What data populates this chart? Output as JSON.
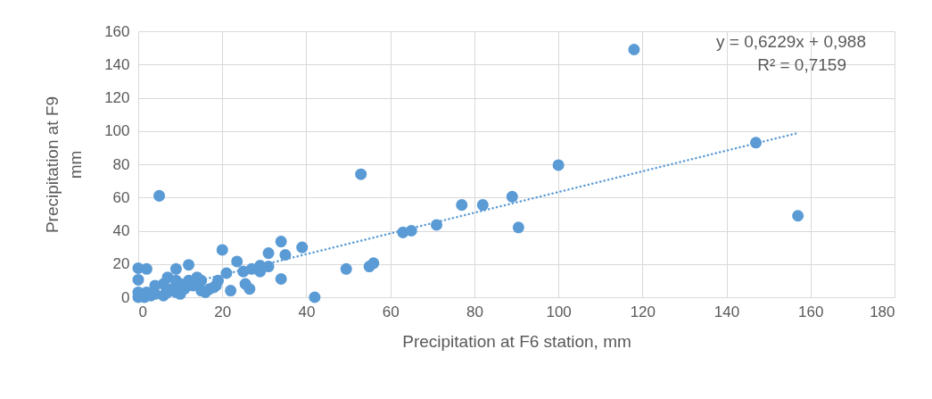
{
  "chart_data": {
    "type": "scatter",
    "xlabel": "Precipitation at F6 station, mm",
    "ylabel": "Precipitation at F9\nmm",
    "xlim": [
      0,
      180
    ],
    "xticks": [
      0,
      20,
      40,
      60,
      80,
      100,
      120,
      140,
      160,
      180
    ],
    "ylim": [
      0,
      160
    ],
    "yticks": [
      0,
      20,
      40,
      60,
      80,
      100,
      120,
      140,
      160
    ],
    "grid": true,
    "annotations": [
      "y = 0,6229x + 0,988",
      "R² = 0,7159"
    ],
    "series": [
      {
        "type": "scatter",
        "color": "#5b9bd5",
        "marker": "circle",
        "x": [
          118,
          147,
          157,
          100,
          89,
          90.5,
          82,
          77,
          71,
          65,
          63,
          56,
          55,
          53,
          49.5,
          42,
          39,
          35,
          34,
          34,
          31,
          31,
          29,
          29,
          27,
          26.5,
          25.5,
          25,
          23.5,
          22,
          21,
          20,
          19,
          18.5,
          17,
          16,
          15,
          14,
          13,
          12,
          11,
          10,
          9,
          9,
          8,
          7,
          6,
          5,
          4,
          3,
          2,
          2,
          0,
          0,
          0,
          0,
          1.5,
          4,
          6,
          7,
          9,
          10,
          12,
          15,
          18
        ],
        "values": [
          149,
          93,
          49,
          79.5,
          60.5,
          42,
          55.5,
          55.5,
          43.5,
          40,
          39,
          20.5,
          18.5,
          74,
          17,
          0,
          30,
          25.5,
          33.5,
          11,
          26.5,
          18.5,
          19,
          15.5,
          17,
          5,
          8,
          15.5,
          21.5,
          4,
          14.5,
          28.5,
          10,
          7,
          5,
          3,
          4,
          12,
          7,
          19.5,
          5,
          2,
          17,
          10,
          5,
          12,
          8,
          61,
          7,
          1,
          17,
          3,
          17.5,
          10.5,
          3,
          0,
          0,
          2,
          1,
          3,
          3,
          8,
          10,
          10,
          6
        ]
      },
      {
        "type": "line",
        "color": "#5b9bd5",
        "line_style": "dotted",
        "x": [
          0,
          157
        ],
        "values": [
          1,
          98.8
        ]
      }
    ]
  }
}
